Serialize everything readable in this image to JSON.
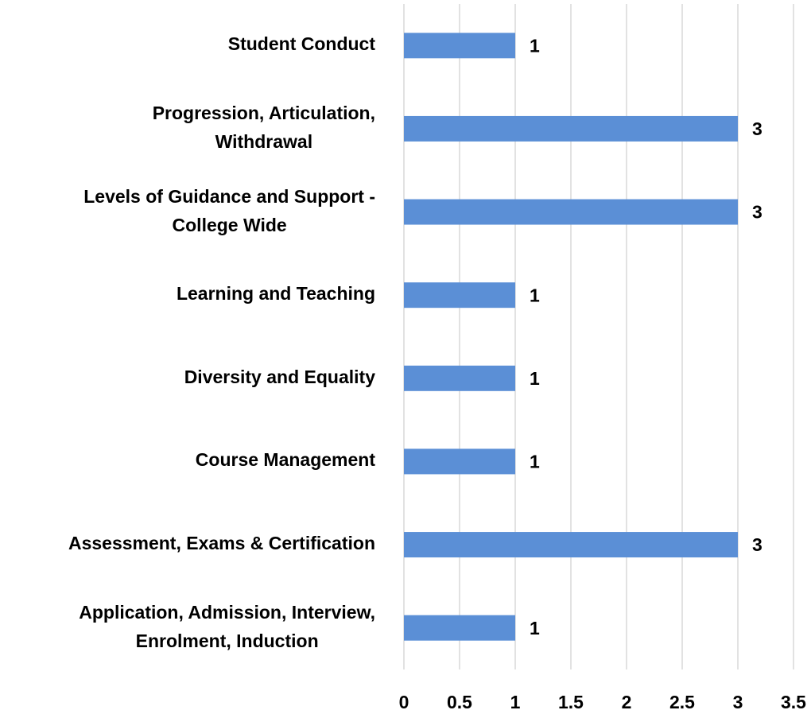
{
  "chart_data": {
    "type": "bar",
    "orientation": "horizontal",
    "categories": [
      "Student Conduct",
      "Progression, Articulation,\nWithdrawal",
      "Levels of Guidance and Support -\nCollege Wide",
      "Learning and Teaching",
      "Diversity and Equality",
      "Course Management",
      "Assessment, Exams & Certification",
      "Application, Admission, Interview,\nEnrolment, Induction"
    ],
    "values": [
      1,
      3,
      3,
      1,
      1,
      1,
      3,
      1
    ],
    "color": "#5b8fd6",
    "xlim": [
      0,
      3.5
    ],
    "xticks": [
      0,
      0.5,
      1,
      1.5,
      2,
      2.5,
      3,
      3.5
    ],
    "grid": true
  }
}
